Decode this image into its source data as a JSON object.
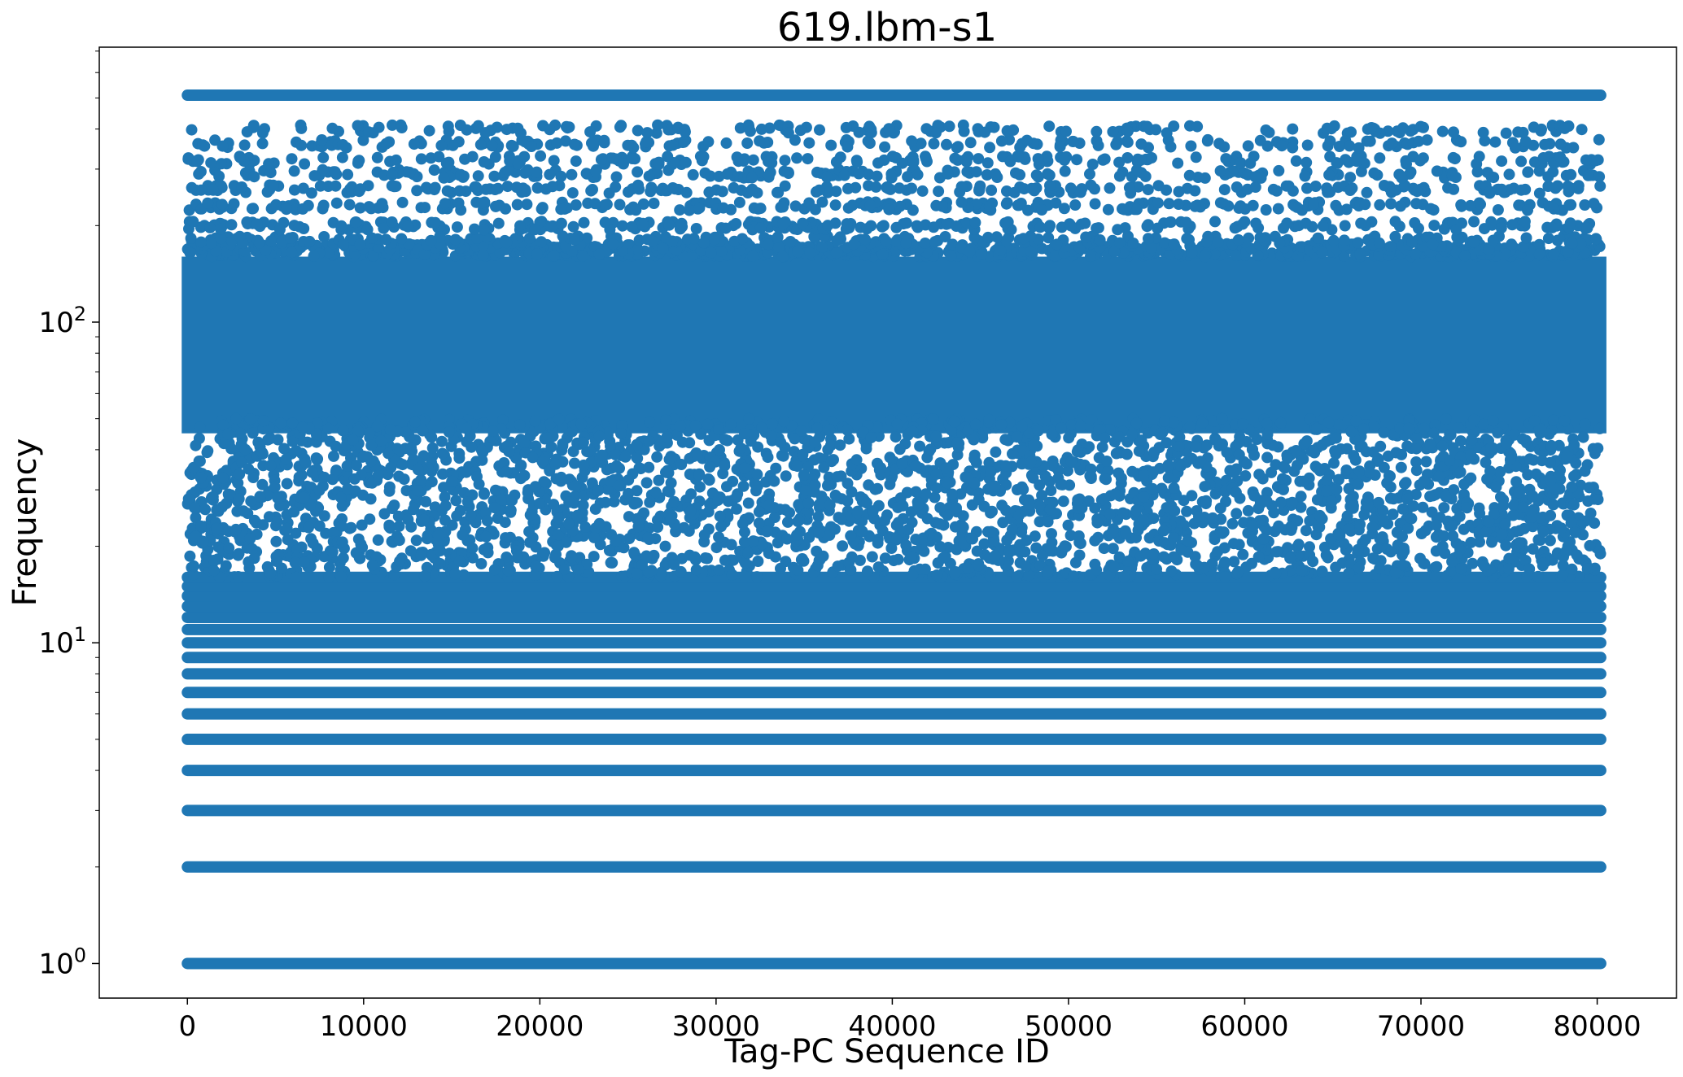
{
  "chart_data": {
    "type": "scatter",
    "title": "619.lbm-s1",
    "xlabel": "Tag-PC Sequence ID",
    "ylabel": "Frequency",
    "xlim": [
      -5000,
      84500
    ],
    "ylim": [
      0.78,
      720
    ],
    "yscale": "log",
    "grid": false,
    "legend": "none",
    "colors": {
      "points": "#1f77b4"
    },
    "x_ticks": [
      0,
      10000,
      20000,
      30000,
      40000,
      50000,
      60000,
      70000,
      80000
    ],
    "x_tick_labels": [
      "0",
      "10000",
      "20000",
      "30000",
      "40000",
      "50000",
      "60000",
      "70000",
      "80000"
    ],
    "y_ticks_major": [
      1,
      10,
      100
    ],
    "y_tick_label_base": "10",
    "y_tick_label_exponents": [
      "0",
      "1",
      "2"
    ],
    "series": [
      {
        "x_range": [
          0,
          80200
        ],
        "levels_dense": [
          1,
          2,
          3,
          4,
          5,
          6,
          7,
          8,
          9,
          10,
          11,
          12,
          13,
          14,
          15,
          16
        ],
        "band_dense": [
          45,
          160
        ],
        "band_scattered": [
          16,
          50
        ],
        "levels_upper_sparse": [
          180,
          200,
          230,
          260,
          290,
          320,
          360,
          400
        ],
        "level_top": 510
      }
    ]
  }
}
